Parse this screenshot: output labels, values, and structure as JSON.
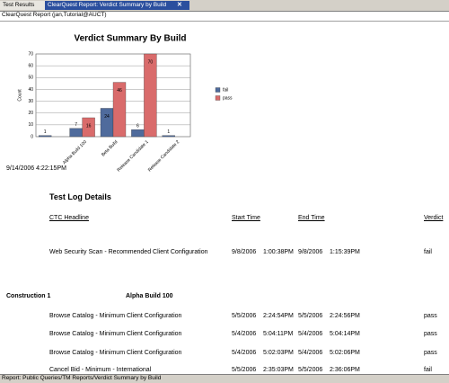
{
  "tabs": [
    "Test Results",
    "ClearQuest Report: Verdict Summary by Build"
  ],
  "report_header": "ClearQuest Report (jan,Tutorial@AUCT)",
  "chart_data": {
    "type": "bar",
    "title": "Verdict Summary By Build",
    "y_label": "Count",
    "categories": [
      null,
      "Alpha Build 100",
      "Beta Build",
      "Release Candidate 1",
      "Release Candidate 2"
    ],
    "series": [
      {
        "name": "fail",
        "color": "#4f6b9c",
        "values": [
          1,
          7,
          24,
          6,
          1
        ]
      },
      {
        "name": "pass",
        "color": "#d96b6b",
        "values": [
          null,
          16,
          46,
          70,
          null
        ]
      }
    ],
    "ylim": [
      0,
      70
    ],
    "yticks": [
      0,
      10,
      20,
      30,
      40,
      50,
      60,
      70
    ],
    "grid": true,
    "legend": "right"
  },
  "timestamp": "9/14/2006 4:22:15PM",
  "section_title": "Test Log Details",
  "table": {
    "headers": [
      "CTC Headline",
      "Start Time",
      "End Time",
      "Verdict"
    ],
    "sections": [
      {
        "rows": [
          [
            "Web Security Scan - Recommended Client Configuration",
            "9/8/2006",
            "1:00:38PM",
            "9/8/2006",
            "1:15:39PM",
            "fail"
          ]
        ]
      },
      {
        "heading": [
          "Construction 1",
          "Alpha Build 100"
        ],
        "rows": [
          [
            "Browse Catalog - Minimum Client Configuration",
            "5/5/2006",
            "2:24:54PM",
            "5/5/2006",
            "2:24:56PM",
            "pass"
          ],
          [
            "Browse Catalog - Minimum Client Configuration",
            "5/4/2006",
            "5:04:11PM",
            "5/4/2006",
            "5:04:14PM",
            "pass"
          ],
          [
            "Browse Catalog - Minimum Client Configuration",
            "5/4/2006",
            "5:02:03PM",
            "5/4/2006",
            "5:02:06PM",
            "pass"
          ],
          [
            "Cancel Bid - Minimum - International",
            "5/5/2006",
            "2:35:03PM",
            "5/5/2006",
            "2:36:06PM",
            "fail"
          ]
        ]
      }
    ]
  },
  "status_bar": "Report: Public Queries/TM Reports/Verdict Summary by Build"
}
